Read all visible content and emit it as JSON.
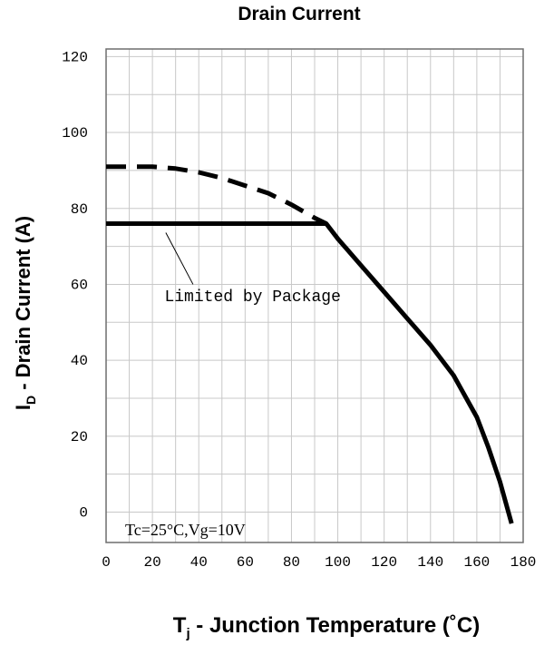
{
  "chart_data": {
    "type": "line",
    "title": "Drain Current",
    "xlabel": {
      "main": "T",
      "sub": "j",
      "rest": " - Junction Temperature (˚C)"
    },
    "ylabel": {
      "main": "I",
      "sub": "D",
      "rest": " - Drain Current (A)"
    },
    "xlim": [
      0,
      180
    ],
    "ylim": [
      0,
      120
    ],
    "x_ticks": [
      0,
      20,
      40,
      60,
      80,
      100,
      120,
      140,
      160,
      180
    ],
    "y_ticks": [
      0,
      20,
      40,
      60,
      80,
      100,
      120
    ],
    "grid": true,
    "series": [
      {
        "style": "dashed",
        "x": [
          0,
          10,
          20,
          30,
          40,
          50,
          60,
          70,
          80,
          90,
          95
        ],
        "y": [
          91,
          91,
          91,
          90.5,
          89.5,
          88,
          86,
          84,
          81,
          77.5,
          76
        ]
      },
      {
        "style": "solid",
        "x": [
          0,
          95,
          100,
          110,
          120,
          130,
          140,
          150,
          160,
          165,
          170,
          175
        ],
        "y": [
          76,
          76,
          72,
          65,
          58,
          51,
          44,
          36,
          25,
          17,
          8,
          -3
        ]
      }
    ],
    "annotations": [
      {
        "text": "Limited by Package",
        "x": 35,
        "y": 56,
        "pointer_to": [
          25,
          76
        ]
      },
      {
        "text": "Tc=25°C,Vg=10V",
        "x": 5,
        "y": 1
      }
    ]
  }
}
